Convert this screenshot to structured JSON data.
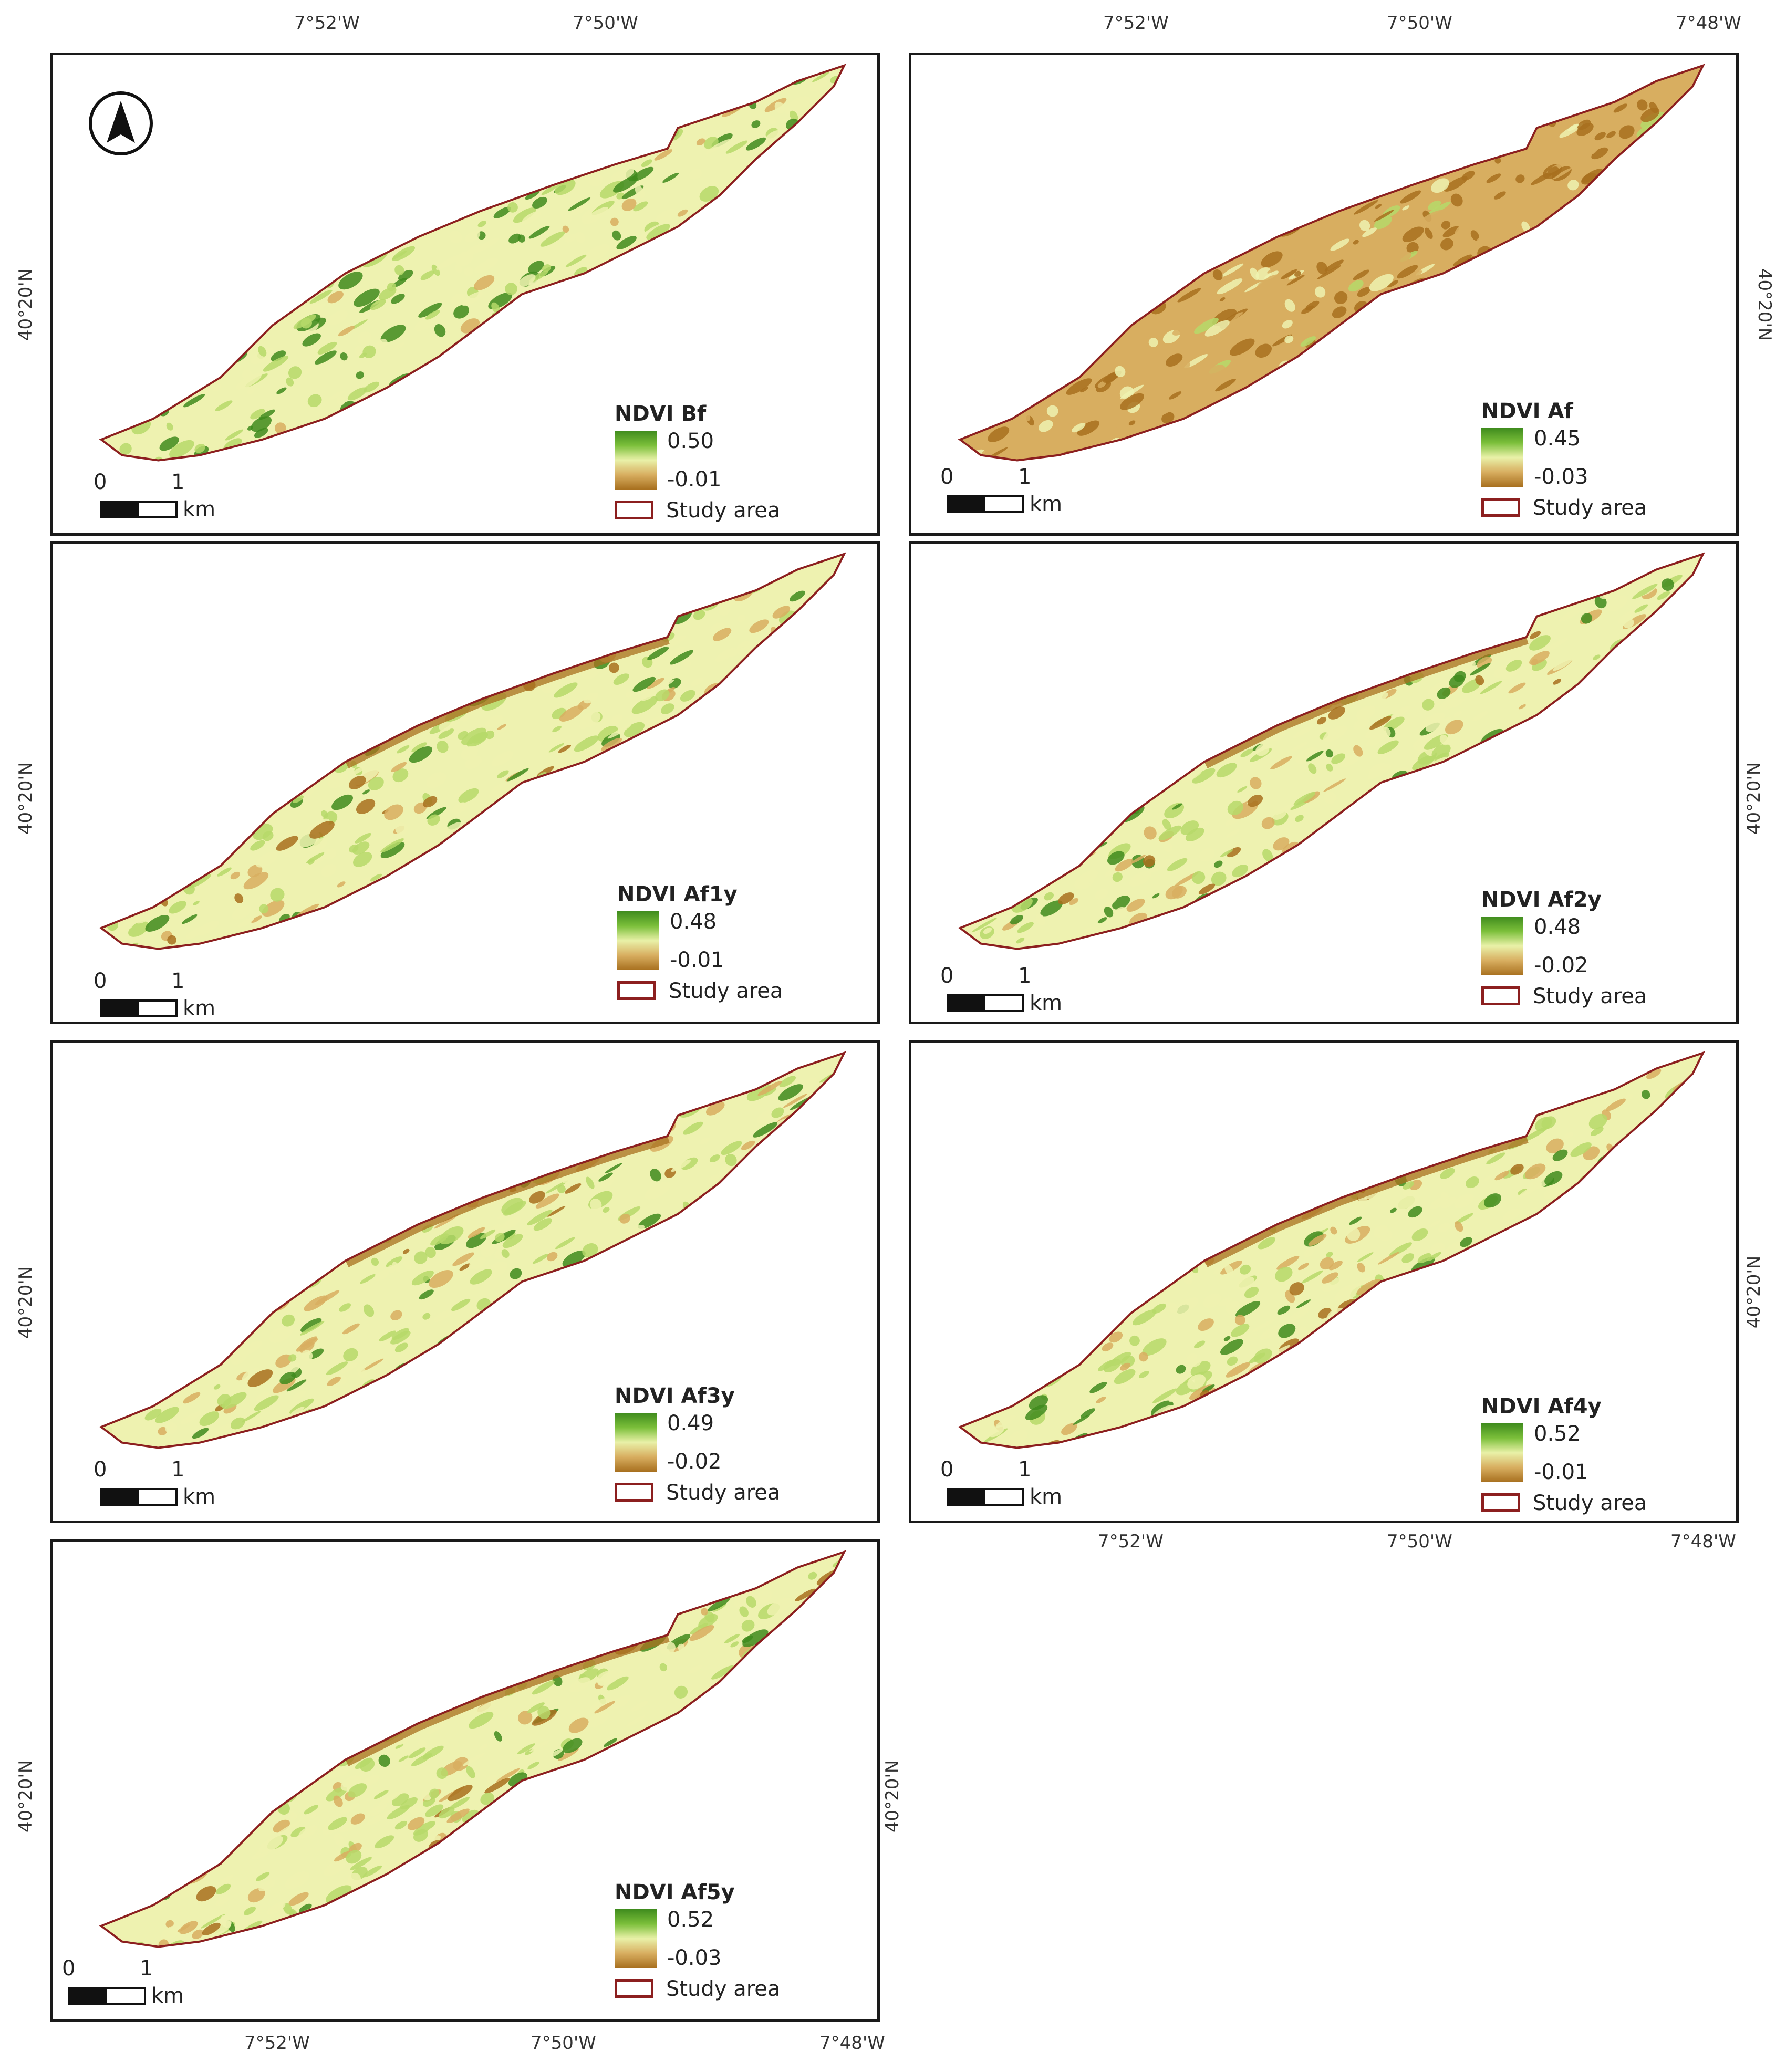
{
  "figure": {
    "panels": [
      {
        "id": "bf",
        "legend_title": "NDVI Bf",
        "max": "0.50",
        "min": "-0.01",
        "study_area": "Study area",
        "scale_0": "0",
        "scale_1": "1",
        "scale_unit": "km",
        "style": "green"
      },
      {
        "id": "af",
        "legend_title": "NDVI Af",
        "max": "0.45",
        "min": "-0.03",
        "study_area": "Study area",
        "scale_0": "0",
        "scale_1": "1",
        "scale_unit": "km",
        "style": "burned"
      },
      {
        "id": "af1y",
        "legend_title": "NDVI Af1y",
        "max": "0.48",
        "min": "-0.01",
        "study_area": "Study area",
        "scale_0": "0",
        "scale_1": "1",
        "scale_unit": "km",
        "style": "mixed"
      },
      {
        "id": "af2y",
        "legend_title": "NDVI Af2y",
        "max": "0.48",
        "min": "-0.02",
        "study_area": "Study area",
        "scale_0": "0",
        "scale_1": "1",
        "scale_unit": "km",
        "style": "mixed"
      },
      {
        "id": "af3y",
        "legend_title": "NDVI Af3y",
        "max": "0.49",
        "min": "-0.02",
        "study_area": "Study area",
        "scale_0": "0",
        "scale_1": "1",
        "scale_unit": "km",
        "style": "mixed"
      },
      {
        "id": "af4y",
        "legend_title": "NDVI Af4y",
        "max": "0.52",
        "min": "-0.01",
        "study_area": "Study area",
        "scale_0": "0",
        "scale_1": "1",
        "scale_unit": "km",
        "style": "mixed"
      },
      {
        "id": "af5y",
        "legend_title": "NDVI Af5y",
        "max": "0.52",
        "min": "-0.03",
        "study_area": "Study area",
        "scale_0": "0",
        "scale_1": "1",
        "scale_unit": "km",
        "style": "mixed"
      }
    ],
    "coords": {
      "lon_52": "7°52'W",
      "lon_50": "7°50'W",
      "lon_48": "7°48'W",
      "lat_20": "40°20'N"
    },
    "colors": {
      "dark_green": "#3f8b1d",
      "light_green": "#b6d96a",
      "pale_yellow": "#eef2b0",
      "tan": "#d8ae60",
      "brown": "#a8701f",
      "outline": "#8c1f1f"
    }
  }
}
